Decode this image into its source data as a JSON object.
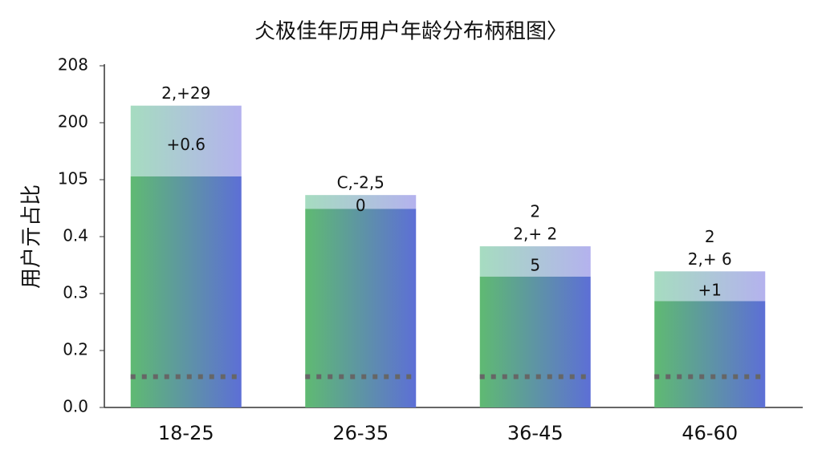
{
  "chart_data": {
    "type": "stacked_bar",
    "title": "仌极佳年历用户年龄分布柄租图〉",
    "y_label": "用户亓占比",
    "categories": [
      "18-25",
      "26-35",
      "36-45",
      "46-60"
    ],
    "series": [
      {
        "values": [
          4.06,
          3.49,
          2.3,
          1.87
        ],
        "gradient": [
          "#5fba72",
          "#5d6fd6"
        ]
      },
      {
        "values": [
          1.24,
          0.24,
          0.53,
          0.52
        ],
        "gradient": [
          "#a6dcc0",
          "#b4b2ee"
        ]
      }
    ],
    "top_labels": [
      [
        "2,+29"
      ],
      [
        "C,-2,5"
      ],
      [
        "2",
        "2,+ 2"
      ],
      [
        "2",
        "2,+ 6"
      ]
    ],
    "inner_labels": [
      "+0.6",
      "0",
      "5",
      "+1"
    ],
    "reference_line": 0.54,
    "ylim": [
      0,
      6
    ],
    "yticks": [
      {
        "value": 0,
        "label": "0.0"
      },
      {
        "value": 1,
        "label": "0.2"
      },
      {
        "value": 2,
        "label": "0.3"
      },
      {
        "value": 3,
        "label": "0.4"
      },
      {
        "value": 4,
        "label": "105"
      },
      {
        "value": 5,
        "label": "200"
      },
      {
        "value": 6,
        "label": "208"
      }
    ]
  }
}
